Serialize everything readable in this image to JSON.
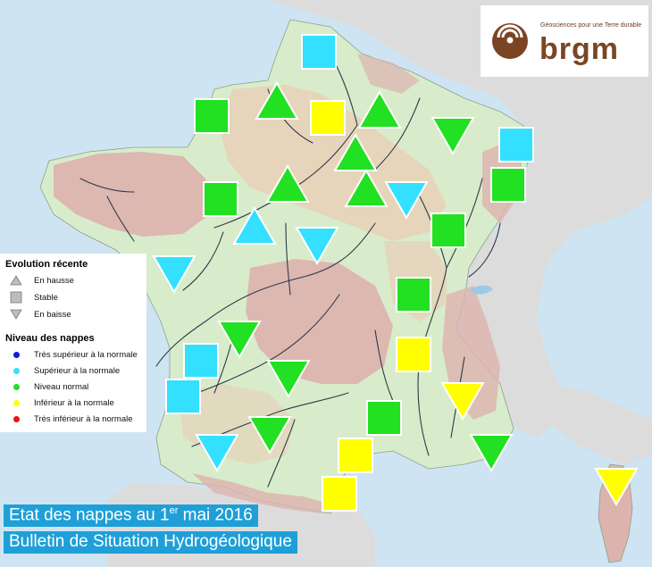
{
  "logo": {
    "tagline": "Géosciences pour une Terre durable",
    "wordmark": "brgm",
    "colors": {
      "brand": "#7b4523"
    }
  },
  "legend": {
    "evolution_title": "Evolution récente",
    "evolution_items": [
      {
        "shape": "up",
        "label": "En hausse"
      },
      {
        "shape": "square",
        "label": "Stable"
      },
      {
        "shape": "down",
        "label": "En baisse"
      }
    ],
    "level_title": "Niveau des nappes",
    "level_items": [
      {
        "color": "#0b1fd6",
        "label": "Très supérieur à la normale"
      },
      {
        "color": "#33e0ff",
        "label": "Supérieur à la normale"
      },
      {
        "color": "#22e022",
        "label": "Niveau normal"
      },
      {
        "color": "#ffff00",
        "label": "Inférieur à la normale"
      },
      {
        "color": "#ee1111",
        "label": "Très inférieur à la normale"
      }
    ]
  },
  "caption": {
    "title_before": "Etat des nappes au 1",
    "title_sup": "er",
    "title_after": " mai 2016",
    "subtitle": "Bulletin de Situation Hydrogéologique"
  },
  "colors": {
    "very_high": "#0b1fd6",
    "high": "#33e0ff",
    "normal": "#22e022",
    "low": "#ffff00",
    "very_low": "#ee1111",
    "sea": "#cfe4f2",
    "neighbours": "#dcdcdc",
    "land": "#d8eccb",
    "aquifer_pink": "#ddb3ae",
    "aquifer_tan": "#eacfb7",
    "rivers": "#2d3a4a"
  },
  "markers": [
    {
      "shape": "square",
      "level": "high"
    },
    {
      "shape": "square",
      "level": "normal"
    },
    {
      "shape": "up",
      "level": "normal"
    },
    {
      "shape": "square",
      "level": "low"
    },
    {
      "shape": "up",
      "level": "normal"
    },
    {
      "shape": "down",
      "level": "normal"
    },
    {
      "shape": "square",
      "level": "high"
    },
    {
      "shape": "up",
      "level": "normal"
    },
    {
      "shape": "up",
      "level": "normal"
    },
    {
      "shape": "square",
      "level": "normal"
    },
    {
      "shape": "square",
      "level": "normal"
    },
    {
      "shape": "up",
      "level": "normal"
    },
    {
      "shape": "down",
      "level": "high"
    },
    {
      "shape": "up",
      "level": "high"
    },
    {
      "shape": "square",
      "level": "normal"
    },
    {
      "shape": "down",
      "level": "high"
    },
    {
      "shape": "down",
      "level": "high"
    },
    {
      "shape": "square",
      "level": "normal"
    },
    {
      "shape": "down",
      "level": "normal"
    },
    {
      "shape": "square",
      "level": "low"
    },
    {
      "shape": "square",
      "level": "high"
    },
    {
      "shape": "down",
      "level": "normal"
    },
    {
      "shape": "square",
      "level": "high"
    },
    {
      "shape": "down",
      "level": "low"
    },
    {
      "shape": "square",
      "level": "normal"
    },
    {
      "shape": "down",
      "level": "normal"
    },
    {
      "shape": "down",
      "level": "high"
    },
    {
      "shape": "square",
      "level": "low"
    },
    {
      "shape": "down",
      "level": "normal"
    },
    {
      "shape": "square",
      "level": "low"
    },
    {
      "shape": "down",
      "level": "low"
    }
  ]
}
